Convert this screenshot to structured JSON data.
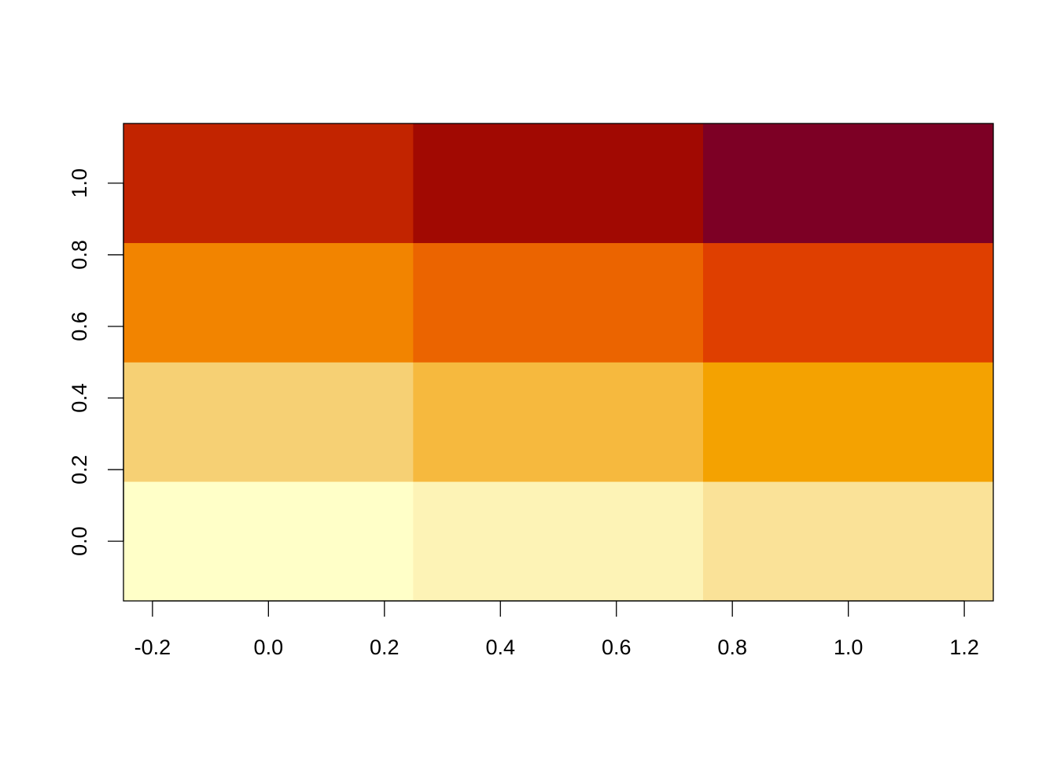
{
  "chart_data": {
    "type": "heatmap",
    "title": "",
    "xlabel": "",
    "ylabel": "",
    "xlim": [
      -0.25,
      1.25
    ],
    "ylim": [
      -0.1667,
      1.1667
    ],
    "x_ticks": [
      "-0.2",
      "0.0",
      "0.2",
      "0.4",
      "0.6",
      "0.8",
      "1.0",
      "1.2"
    ],
    "y_ticks": [
      "0.0",
      "0.2",
      "0.4",
      "0.6",
      "0.8",
      "1.0"
    ],
    "x_centers": [
      0.0,
      0.5,
      1.0
    ],
    "y_centers": [
      0.0,
      0.3333,
      0.6667,
      1.0
    ],
    "cell_width": 0.5,
    "cell_height": 0.3333,
    "cell_colors": [
      [
        "#FFFFC8",
        "#FDF3B6",
        "#FAE298"
      ],
      [
        "#F6D074",
        "#F6B93E",
        "#F4A201"
      ],
      [
        "#F28400",
        "#EB6400",
        "#DF3F00"
      ],
      [
        "#C22400",
        "#A10902",
        "#7D0025"
      ]
    ],
    "palette": "heat.colors",
    "grid": false,
    "legend": false
  }
}
